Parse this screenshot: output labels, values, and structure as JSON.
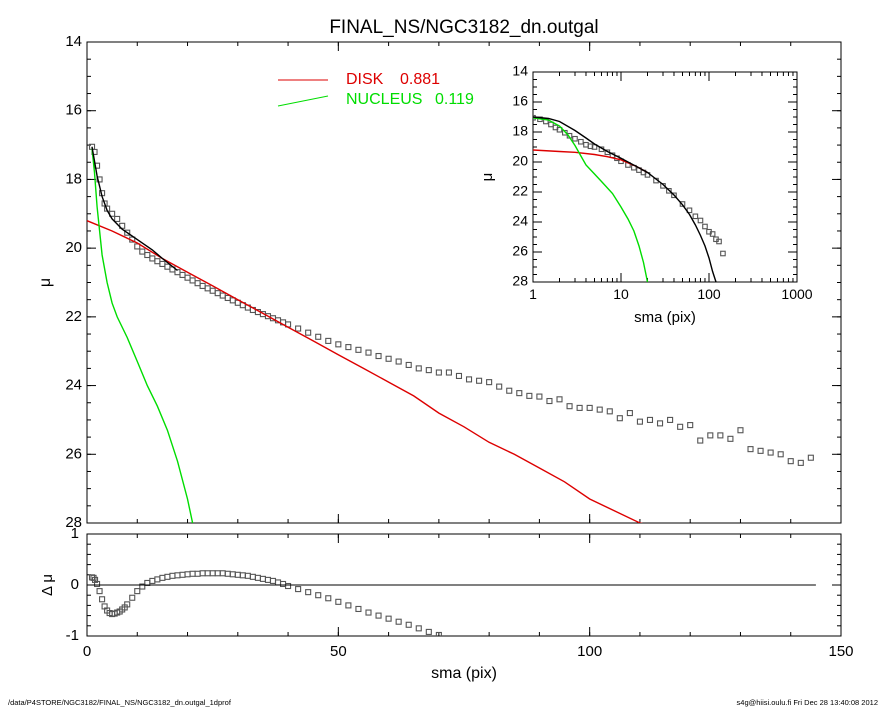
{
  "title": "FINAL_NS/NGC3182_dn.outgal",
  "footer": {
    "left": "/data/P4STORE/NGC3182/FINAL_NS/NGC3182_dn.outgal_1dprof",
    "right": "s4g@hiisi.oulu.fi  Fri Dec 28 13:40:08 2012"
  },
  "colors": {
    "axes": "#000000",
    "data": "#555555",
    "disk": "#dd0000",
    "nucleus": "#00dd00",
    "total": "#000000"
  },
  "chart_data": [
    {
      "id": "main",
      "type": "scatter",
      "xlabel": "",
      "ylabel": "μ",
      "xlim": [
        0,
        150
      ],
      "ylim": [
        28,
        14
      ],
      "yticks": [
        14,
        16,
        18,
        20,
        22,
        24,
        26,
        28
      ],
      "legend": {
        "placement": "top-center",
        "entries": [
          {
            "label": "DISK",
            "value": "0.881",
            "color": "#dd0000"
          },
          {
            "label": "NUCLEUS",
            "value": "0.119",
            "color": "#00dd00"
          }
        ]
      },
      "series": [
        {
          "kind": "points",
          "color": "#555555",
          "x": [
            1,
            1.5,
            2,
            2.5,
            3,
            3.5,
            4,
            5,
            6,
            7,
            8,
            9,
            10,
            11,
            12,
            13,
            14,
            15,
            16,
            17,
            18,
            19,
            20,
            21,
            22,
            23,
            24,
            25,
            26,
            27,
            28,
            29,
            30,
            31,
            32,
            33,
            34,
            35,
            36,
            37,
            38,
            39,
            40,
            42,
            44,
            46,
            48,
            50,
            52,
            54,
            56,
            58,
            60,
            62,
            64,
            66,
            68,
            70,
            72,
            74,
            76,
            78,
            80,
            82,
            84,
            86,
            88,
            90,
            92,
            94,
            96,
            98,
            100,
            102,
            104,
            106,
            108,
            110,
            112,
            114,
            116,
            118,
            120,
            122,
            124,
            126,
            128,
            130,
            132,
            134,
            136,
            138,
            140,
            142,
            144
          ],
          "y": [
            17.05,
            17.2,
            17.6,
            18.0,
            18.4,
            18.7,
            18.85,
            19.0,
            19.15,
            19.35,
            19.55,
            19.75,
            19.95,
            20.1,
            20.2,
            20.3,
            20.38,
            20.46,
            20.54,
            20.62,
            20.7,
            20.78,
            20.86,
            20.94,
            21.02,
            21.1,
            21.17,
            21.24,
            21.31,
            21.38,
            21.45,
            21.52,
            21.59,
            21.66,
            21.73,
            21.8,
            21.86,
            21.92,
            21.98,
            22.04,
            22.1,
            22.16,
            22.22,
            22.34,
            22.46,
            22.58,
            22.7,
            22.8,
            22.88,
            22.96,
            23.04,
            23.14,
            23.22,
            23.3,
            23.4,
            23.5,
            23.55,
            23.62,
            23.62,
            23.72,
            23.82,
            23.86,
            23.9,
            24.03,
            24.15,
            24.22,
            24.3,
            24.32,
            24.45,
            24.4,
            24.6,
            24.65,
            24.65,
            24.7,
            24.75,
            24.95,
            24.8,
            25.05,
            25.0,
            25.1,
            25.0,
            25.2,
            25.15,
            25.6,
            25.45,
            25.45,
            25.55,
            25.3,
            25.85,
            25.9,
            25.95,
            26.0,
            26.2,
            26.25,
            26.1
          ]
        },
        {
          "kind": "line",
          "name": "DISK",
          "color": "#dd0000",
          "x": [
            0,
            5,
            10,
            15,
            20,
            25,
            30,
            35,
            40,
            45,
            50,
            55,
            60,
            65,
            70,
            75,
            80,
            85,
            90,
            95,
            100,
            105,
            110,
            113
          ],
          "y": [
            19.2,
            19.5,
            19.85,
            20.3,
            20.7,
            21.1,
            21.5,
            21.9,
            22.3,
            22.7,
            23.1,
            23.5,
            23.9,
            24.3,
            24.8,
            25.2,
            25.65,
            26.0,
            26.4,
            26.8,
            27.3,
            27.65,
            28.0,
            28.1
          ]
        },
        {
          "kind": "line",
          "name": "NUCLEUS",
          "color": "#00dd00",
          "x": [
            1,
            1.5,
            2,
            3,
            4,
            5,
            6,
            8,
            10,
            12,
            14,
            16,
            18,
            20,
            21
          ],
          "y": [
            17.1,
            17.8,
            18.8,
            20.2,
            21.0,
            21.6,
            22.0,
            22.6,
            23.3,
            24.0,
            24.6,
            25.3,
            26.2,
            27.3,
            28.0
          ]
        },
        {
          "kind": "line",
          "name": "total",
          "color": "#000000",
          "x": [
            1,
            2,
            3,
            4,
            5,
            7,
            10,
            13,
            15,
            18
          ],
          "y": [
            17.05,
            17.9,
            18.5,
            18.9,
            19.15,
            19.45,
            19.75,
            20.05,
            20.3,
            20.65
          ]
        }
      ]
    },
    {
      "id": "inset",
      "type": "scatter",
      "xscale": "log",
      "xlabel": "sma (pix)",
      "ylabel": "μ",
      "xlim": [
        1,
        1000
      ],
      "ylim": [
        28,
        14
      ],
      "xticks": [
        1,
        10,
        100,
        1000
      ],
      "yticks": [
        14,
        16,
        18,
        20,
        22,
        24,
        26,
        28
      ],
      "series": [
        {
          "kind": "points",
          "color": "#555555",
          "x": [
            1,
            1.2,
            1.4,
            1.6,
            1.8,
            2,
            2.3,
            2.6,
            3,
            3.5,
            4,
            4.5,
            5,
            6,
            7,
            8,
            9,
            10,
            12,
            14,
            16,
            18,
            20,
            25,
            30,
            35,
            40,
            50,
            60,
            70,
            80,
            90,
            100,
            110,
            120,
            130,
            144
          ],
          "y": [
            17.05,
            17.15,
            17.3,
            17.5,
            17.7,
            17.85,
            18.05,
            18.25,
            18.45,
            18.65,
            18.85,
            18.95,
            19.0,
            19.15,
            19.35,
            19.55,
            19.75,
            19.95,
            20.2,
            20.38,
            20.54,
            20.7,
            20.86,
            21.24,
            21.59,
            21.92,
            22.22,
            22.8,
            23.22,
            23.62,
            23.9,
            24.3,
            24.65,
            24.8,
            25.15,
            25.3,
            26.1
          ]
        },
        {
          "kind": "line",
          "name": "DISK",
          "color": "#dd0000",
          "x": [
            1,
            2,
            3,
            5,
            7,
            10,
            15,
            20
          ],
          "y": [
            19.2,
            19.3,
            19.35,
            19.5,
            19.65,
            19.85,
            20.3,
            20.7
          ]
        },
        {
          "kind": "line",
          "name": "NUCLEUS",
          "color": "#00dd00",
          "x": [
            1,
            1.5,
            2,
            2.5,
            3,
            3.5,
            4,
            5,
            6,
            8,
            10,
            12,
            14,
            16,
            18,
            20
          ],
          "y": [
            17.05,
            17.2,
            17.6,
            18.2,
            18.9,
            19.6,
            20.2,
            20.8,
            21.3,
            22.1,
            23.0,
            23.8,
            24.6,
            25.6,
            26.7,
            28.0
          ]
        },
        {
          "kind": "line",
          "name": "total",
          "color": "#000000",
          "x": [
            1,
            1.5,
            2,
            3,
            4,
            5,
            7,
            10,
            15,
            20,
            30,
            40,
            50,
            60,
            70,
            80,
            90,
            100,
            110,
            120
          ],
          "y": [
            17.0,
            17.1,
            17.3,
            17.9,
            18.4,
            18.8,
            19.3,
            19.75,
            20.3,
            20.7,
            21.5,
            22.2,
            22.85,
            23.5,
            24.2,
            24.9,
            25.6,
            26.4,
            27.3,
            28.0
          ]
        }
      ]
    },
    {
      "id": "residual",
      "type": "scatter",
      "xlabel": "sma (pix)",
      "ylabel": "Δ μ",
      "xlim": [
        0,
        150
      ],
      "ylim": [
        -1,
        1
      ],
      "xticks": [
        0,
        50,
        100,
        150
      ],
      "yticks": [
        -1,
        0,
        1
      ],
      "series": [
        {
          "kind": "points",
          "color": "#555555",
          "x": [
            1,
            1.3,
            1.6,
            2,
            2.5,
            3,
            3.5,
            4,
            4.5,
            5,
            5.5,
            6,
            6.5,
            7,
            7.5,
            8,
            9,
            10,
            11,
            12,
            13,
            14,
            15,
            16,
            17,
            18,
            19,
            20,
            21,
            22,
            23,
            24,
            25,
            26,
            27,
            28,
            29,
            30,
            31,
            32,
            33,
            34,
            35,
            36,
            37,
            38,
            39,
            40,
            42,
            44,
            46,
            48,
            50,
            52,
            54,
            56,
            58,
            60,
            62,
            64,
            66,
            68,
            70
          ],
          "y": [
            0.15,
            0.14,
            0.1,
            0.02,
            -0.12,
            -0.28,
            -0.42,
            -0.5,
            -0.55,
            -0.57,
            -0.56,
            -0.54,
            -0.52,
            -0.48,
            -0.44,
            -0.38,
            -0.25,
            -0.12,
            -0.03,
            0.04,
            0.08,
            0.11,
            0.14,
            0.16,
            0.18,
            0.19,
            0.2,
            0.21,
            0.22,
            0.22,
            0.23,
            0.23,
            0.23,
            0.23,
            0.23,
            0.22,
            0.21,
            0.2,
            0.19,
            0.18,
            0.16,
            0.14,
            0.12,
            0.1,
            0.08,
            0.05,
            0.02,
            -0.02,
            -0.08,
            -0.14,
            -0.2,
            -0.26,
            -0.33,
            -0.4,
            -0.47,
            -0.54,
            -0.6,
            -0.66,
            -0.72,
            -0.78,
            -0.85,
            -0.92,
            -0.98
          ]
        },
        {
          "kind": "line",
          "name": "zero",
          "color": "#000000",
          "x": [
            0,
            145
          ],
          "y": [
            0,
            0
          ]
        }
      ]
    }
  ]
}
